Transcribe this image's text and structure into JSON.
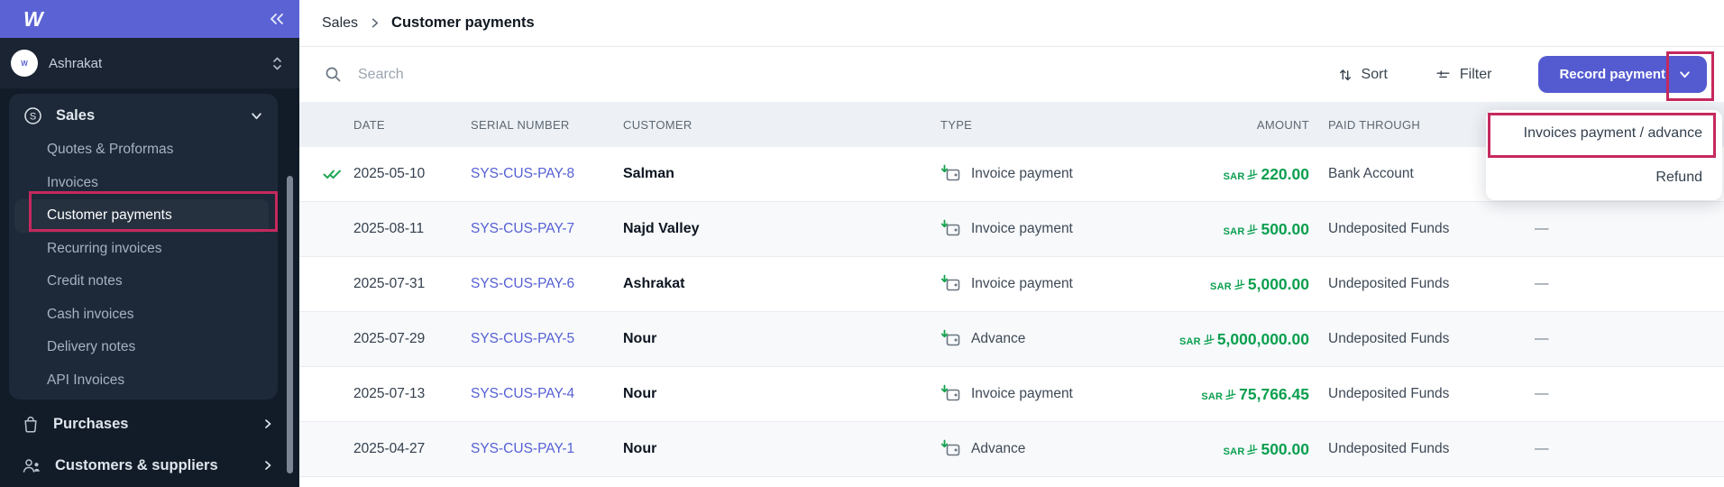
{
  "app": {
    "logo_letter": "W"
  },
  "colors": {
    "topbar_purple": "#5b63d4",
    "button_purple": "#545bd0",
    "link_blue": "#5560d4",
    "amount_green": "#0a9f4f",
    "annotation_red": "#c5295d",
    "sidebar_navy": "#121c29"
  },
  "sidebar": {
    "workspace": {
      "name": "Ashrakat"
    },
    "sales": {
      "label": "Sales",
      "items": [
        {
          "label": "Quotes & Proformas"
        },
        {
          "label": "Invoices"
        },
        {
          "label": "Customer payments",
          "selected": true,
          "annotated": true
        },
        {
          "label": "Recurring invoices"
        },
        {
          "label": "Credit notes"
        },
        {
          "label": "Cash invoices"
        },
        {
          "label": "Delivery notes"
        },
        {
          "label": "API Invoices"
        }
      ]
    },
    "purchases": {
      "label": "Purchases"
    },
    "customers_suppliers": {
      "label": "Customers & suppliers"
    }
  },
  "breadcrumb": {
    "section": "Sales",
    "page": "Customer payments"
  },
  "toolbar": {
    "search_placeholder": "Search",
    "sort_label": "Sort",
    "filter_label": "Filter",
    "record_payment_label": "Record payment"
  },
  "dropdown": {
    "items": [
      {
        "label": "Invoices payment / advance",
        "annotated": true
      },
      {
        "label": "Refund"
      }
    ]
  },
  "table": {
    "columns": [
      "DATE",
      "SERIAL NUMBER",
      "CUSTOMER",
      "TYPE",
      "AMOUNT",
      "PAID THROUGH"
    ],
    "currency": "SAR",
    "rows": [
      {
        "reconciled": true,
        "date": "2025-05-10",
        "serial": "SYS-CUS-PAY-8",
        "customer": "Salman",
        "type": "Invoice payment",
        "amount": "220.00",
        "paid_through": "Bank Account",
        "extra": ""
      },
      {
        "reconciled": false,
        "date": "2025-08-11",
        "serial": "SYS-CUS-PAY-7",
        "customer": "Najd Valley",
        "type": "Invoice payment",
        "amount": "500.00",
        "paid_through": "Undeposited Funds",
        "extra": "—"
      },
      {
        "reconciled": false,
        "date": "2025-07-31",
        "serial": "SYS-CUS-PAY-6",
        "customer": "Ashrakat",
        "type": "Invoice payment",
        "amount": "5,000.00",
        "paid_through": "Undeposited Funds",
        "extra": "—"
      },
      {
        "reconciled": false,
        "date": "2025-07-29",
        "serial": "SYS-CUS-PAY-5",
        "customer": "Nour",
        "type": "Advance",
        "amount": "5,000,000.00",
        "paid_through": "Undeposited Funds",
        "extra": "—"
      },
      {
        "reconciled": false,
        "date": "2025-07-13",
        "serial": "SYS-CUS-PAY-4",
        "customer": "Nour",
        "type": "Invoice payment",
        "amount": "75,766.45",
        "paid_through": "Undeposited Funds",
        "extra": "—"
      },
      {
        "reconciled": false,
        "date": "2025-04-27",
        "serial": "SYS-CUS-PAY-1",
        "customer": "Nour",
        "type": "Advance",
        "amount": "500.00",
        "paid_through": "Undeposited Funds",
        "extra": "—"
      }
    ]
  }
}
